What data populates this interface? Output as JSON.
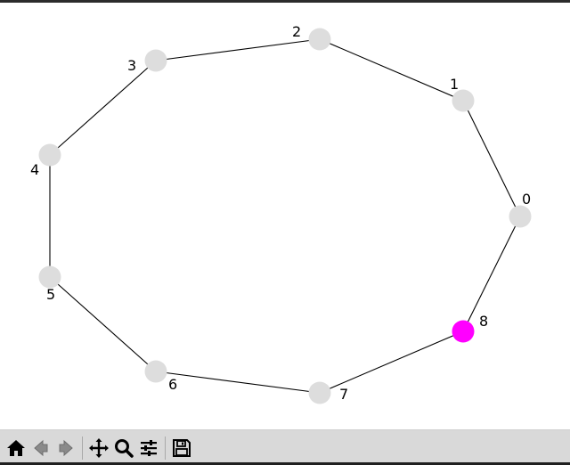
{
  "graph": {
    "nodes": [
      {
        "id": "0",
        "label": "0",
        "highlighted": false
      },
      {
        "id": "1",
        "label": "1",
        "highlighted": false
      },
      {
        "id": "2",
        "label": "2",
        "highlighted": false
      },
      {
        "id": "3",
        "label": "3",
        "highlighted": false
      },
      {
        "id": "4",
        "label": "4",
        "highlighted": false
      },
      {
        "id": "5",
        "label": "5",
        "highlighted": false
      },
      {
        "id": "6",
        "label": "6",
        "highlighted": false
      },
      {
        "id": "7",
        "label": "7",
        "highlighted": false
      },
      {
        "id": "8",
        "label": "8",
        "highlighted": true
      }
    ],
    "edges": [
      [
        "0",
        "1"
      ],
      [
        "1",
        "2"
      ],
      [
        "2",
        "3"
      ],
      [
        "3",
        "4"
      ],
      [
        "4",
        "5"
      ],
      [
        "5",
        "6"
      ],
      [
        "6",
        "7"
      ],
      [
        "7",
        "8"
      ],
      [
        "8",
        "0"
      ]
    ],
    "colors": {
      "node": "#dddddd",
      "highlight": "#ff00ff",
      "edge": "#000000"
    }
  },
  "toolbar": {
    "buttons": [
      {
        "name": "home-button",
        "icon": "home-icon"
      },
      {
        "name": "back-button",
        "icon": "back-arrow-icon"
      },
      {
        "name": "forward-button",
        "icon": "forward-arrow-icon"
      },
      {
        "name": "pan-button",
        "icon": "move-icon"
      },
      {
        "name": "zoom-button",
        "icon": "magnifier-icon"
      },
      {
        "name": "configure-subplots-button",
        "icon": "sliders-icon"
      },
      {
        "name": "save-button",
        "icon": "floppy-disk-icon"
      }
    ]
  }
}
